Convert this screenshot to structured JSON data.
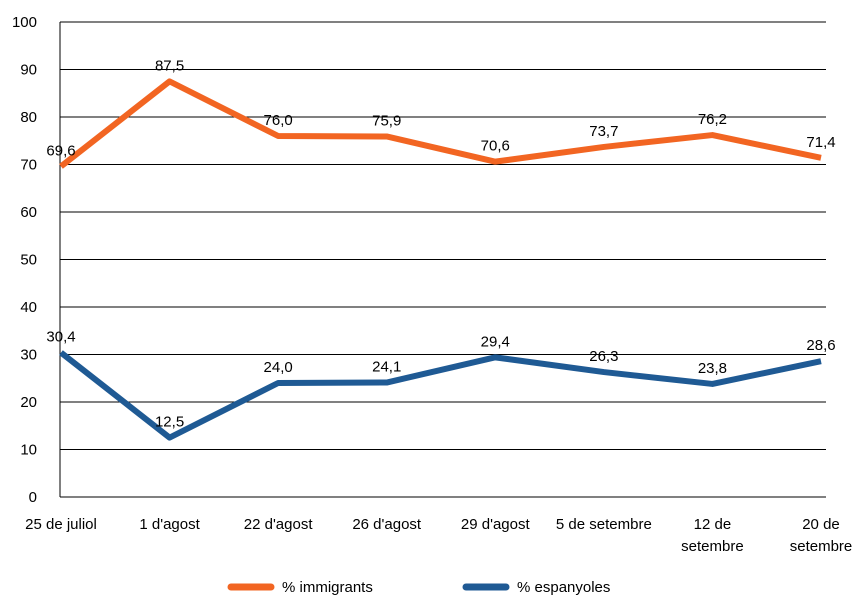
{
  "chart_data": {
    "type": "line",
    "categories": [
      [
        "25 de juliol"
      ],
      [
        "1 d'agost"
      ],
      [
        "22 d'agost"
      ],
      [
        "26 d'agost"
      ],
      [
        "29 d'agost"
      ],
      [
        "5 de setembre"
      ],
      [
        "12 de",
        "setembre"
      ],
      [
        "20 de",
        "setembre"
      ]
    ],
    "series": [
      {
        "name": "% immigrants",
        "color": "#f26522",
        "values": [
          69.6,
          87.5,
          76.0,
          75.9,
          70.6,
          73.7,
          76.2,
          71.4
        ],
        "labels": [
          "69,6",
          "87,5",
          "76,0",
          "75,9",
          "70,6",
          "73,7",
          "76,2",
          "71,4"
        ]
      },
      {
        "name": "% espanyoles",
        "color": "#1f5a94",
        "values": [
          30.4,
          12.5,
          24.0,
          24.1,
          29.4,
          26.3,
          23.8,
          28.6
        ],
        "labels": [
          "30,4",
          "12,5",
          "24,0",
          "24,1",
          "29,4",
          "26,3",
          "23,8",
          "28,6"
        ]
      }
    ],
    "ylim": [
      0,
      100
    ],
    "yticks": [
      0,
      10,
      20,
      30,
      40,
      50,
      60,
      70,
      80,
      90,
      100
    ],
    "grid": true,
    "legend_position": "bottom"
  }
}
